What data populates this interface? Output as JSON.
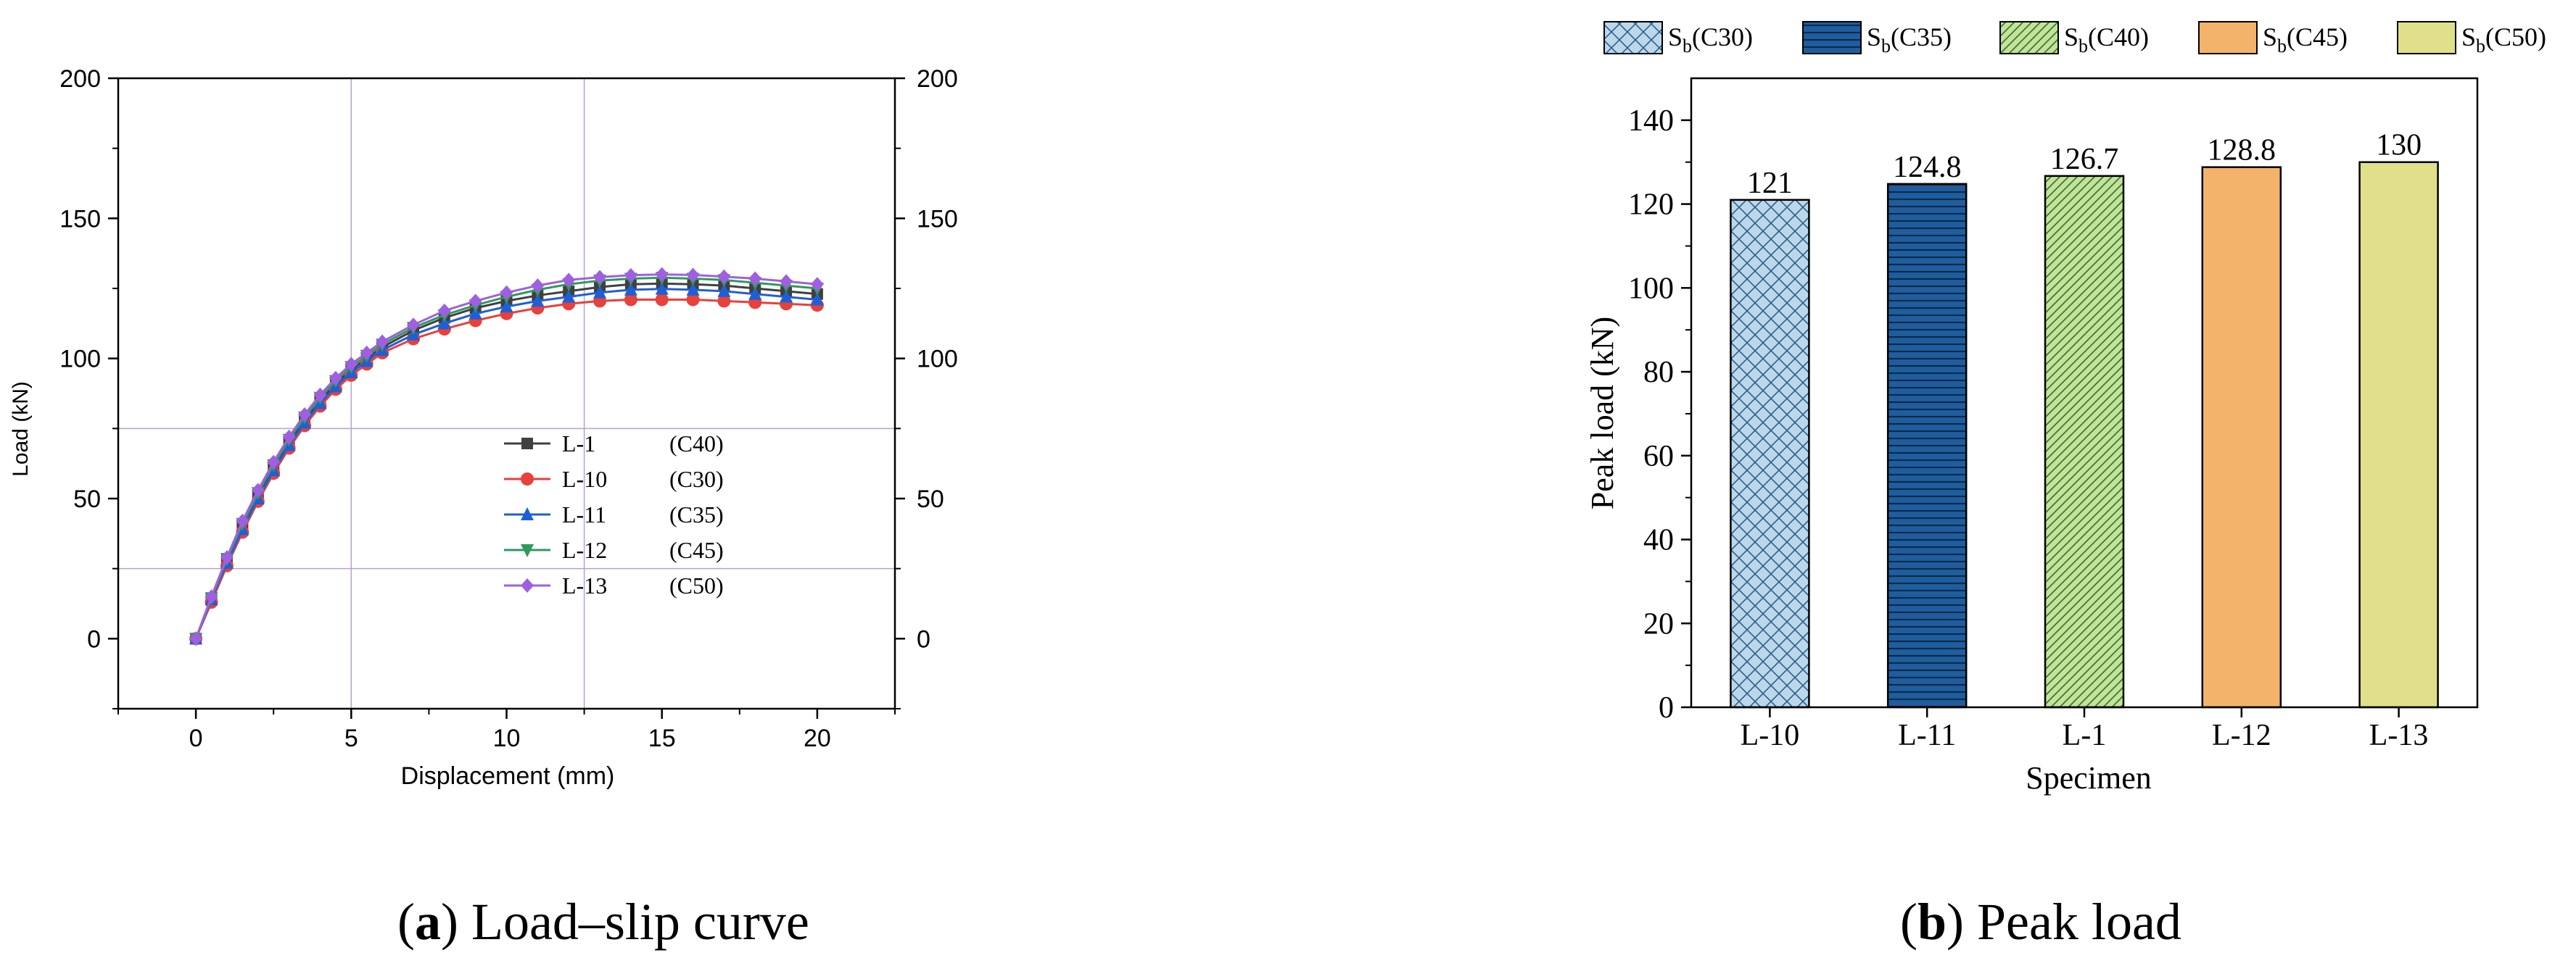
{
  "chart_data": [
    {
      "type": "line",
      "panel": "a",
      "caption_letter": "a",
      "caption_text": " Load–slip curve",
      "xlabel": "Displacement (mm)",
      "ylabel": "Load (kN)",
      "xlim": [
        -2.5,
        22.5
      ],
      "ylim": [
        -25,
        200
      ],
      "x_ticks": [
        0,
        5,
        10,
        15,
        20
      ],
      "y_ticks": [
        0,
        50,
        100,
        150,
        200
      ],
      "right_axis_ticks": [
        0,
        50,
        100,
        150,
        200
      ],
      "grid": "partial",
      "grid_x": [
        5,
        12.5
      ],
      "grid_y": [
        25,
        75
      ],
      "legend_position": "center-right",
      "colors": {
        "L-1": "#404040",
        "L-10": "#e8403a",
        "L-11": "#1f5fd6",
        "L-12": "#2e9a5f",
        "L-13": "#a05fe0",
        "grid": "#b9a3c2",
        "axis": "#000000"
      },
      "series": [
        {
          "name": "L-1",
          "grade": "(C40)",
          "marker": "square",
          "color": "#404040",
          "x": [
            0,
            0.5,
            1,
            1.5,
            2,
            2.5,
            3,
            3.5,
            4,
            4.5,
            5,
            5.5,
            6,
            7,
            8,
            9,
            10,
            11,
            12,
            13,
            14,
            15,
            16,
            17,
            18,
            19,
            20
          ],
          "y": [
            0,
            14,
            28,
            40,
            51,
            61,
            70,
            78,
            85,
            91,
            96,
            100,
            104,
            110,
            114.5,
            118,
            120.5,
            122.5,
            124,
            125.5,
            126.5,
            126.7,
            126.5,
            126,
            125,
            124,
            123
          ]
        },
        {
          "name": "L-10",
          "grade": "(C30)",
          "marker": "circle",
          "color": "#e8403a",
          "x": [
            0,
            0.5,
            1,
            1.5,
            2,
            2.5,
            3,
            3.5,
            4,
            4.5,
            5,
            5.5,
            6,
            7,
            8,
            9,
            10,
            11,
            12,
            13,
            14,
            15,
            16,
            17,
            18,
            19,
            20
          ],
          "y": [
            0,
            13,
            26,
            38,
            49,
            59,
            68,
            76,
            83,
            89,
            94,
            98,
            102,
            107,
            110.5,
            113.5,
            116,
            118,
            119.5,
            120.5,
            121,
            121,
            121,
            120.5,
            120,
            119.5,
            119
          ]
        },
        {
          "name": "L-11",
          "grade": "(C35)",
          "marker": "triangle-up",
          "color": "#1f5fd6",
          "x": [
            0,
            0.5,
            1,
            1.5,
            2,
            2.5,
            3,
            3.5,
            4,
            4.5,
            5,
            5.5,
            6,
            7,
            8,
            9,
            10,
            11,
            12,
            13,
            14,
            15,
            16,
            17,
            18,
            19,
            20
          ],
          "y": [
            0,
            14,
            27,
            39,
            50,
            60,
            69,
            77,
            84,
            90,
            95,
            99,
            103,
            108.5,
            112.5,
            116,
            118.5,
            120.5,
            122,
            123.5,
            124.5,
            124.8,
            124.5,
            124,
            123,
            122,
            121
          ]
        },
        {
          "name": "L-12",
          "grade": "(C45)",
          "marker": "triangle-down",
          "color": "#2e9a5f",
          "x": [
            0,
            0.5,
            1,
            1.5,
            2,
            2.5,
            3,
            3.5,
            4,
            4.5,
            5,
            5.5,
            6,
            7,
            8,
            9,
            10,
            11,
            12,
            13,
            14,
            15,
            16,
            17,
            18,
            19,
            20
          ],
          "y": [
            0,
            14.5,
            28.5,
            41,
            52,
            62,
            71,
            79,
            86,
            92,
            97,
            101,
            105,
            111,
            115.5,
            119,
            122,
            124.5,
            126.5,
            127.8,
            128.5,
            128.8,
            128.5,
            128,
            127,
            126,
            125
          ]
        },
        {
          "name": "L-13",
          "grade": "(C50)",
          "marker": "diamond",
          "color": "#a05fe0",
          "x": [
            0,
            0.5,
            1,
            1.5,
            2,
            2.5,
            3,
            3.5,
            4,
            4.5,
            5,
            5.5,
            6,
            7,
            8,
            9,
            10,
            11,
            12,
            13,
            14,
            15,
            16,
            17,
            18,
            19,
            20
          ],
          "y": [
            0,
            15,
            29,
            42,
            53,
            63,
            72,
            80,
            87,
            93,
            98,
            102,
            106,
            112,
            117,
            120.5,
            123.5,
            126,
            128,
            129,
            129.7,
            130,
            129.8,
            129.2,
            128.5,
            127.5,
            126.5
          ]
        }
      ]
    },
    {
      "type": "bar",
      "panel": "b",
      "caption_letter": "b",
      "caption_text": " Peak load",
      "xlabel": "Specimen",
      "ylabel": "Peak load (kN)",
      "ylim": [
        0,
        150
      ],
      "y_ticks": [
        0,
        20,
        40,
        60,
        80,
        100,
        120,
        140
      ],
      "grid": "off",
      "legend_position": "top",
      "categories": [
        "L-10",
        "L-11",
        "L-1",
        "L-12",
        "L-13"
      ],
      "values": [
        121,
        124.8,
        126.7,
        128.8,
        130
      ],
      "value_labels": [
        "121",
        "124.8",
        "126.7",
        "128.8",
        "130"
      ],
      "colors": [
        "#bcd7ea",
        "#1f5e9e",
        "#c3e29b",
        "#f4b36a",
        "#e0e08a"
      ],
      "patterns": [
        "crosshatch",
        "horizontal-lines",
        "diagonal-lines",
        "none",
        "none"
      ],
      "legend": [
        {
          "prefix": "S",
          "sub": "b",
          "suffix": "(C30)"
        },
        {
          "prefix": "S",
          "sub": "b",
          "suffix": "(C35)"
        },
        {
          "prefix": "S",
          "sub": "b",
          "suffix": "(C40)"
        },
        {
          "prefix": "S",
          "sub": "b",
          "suffix": "(C45)"
        },
        {
          "prefix": "S",
          "sub": "b",
          "suffix": "(C50)"
        }
      ]
    }
  ]
}
